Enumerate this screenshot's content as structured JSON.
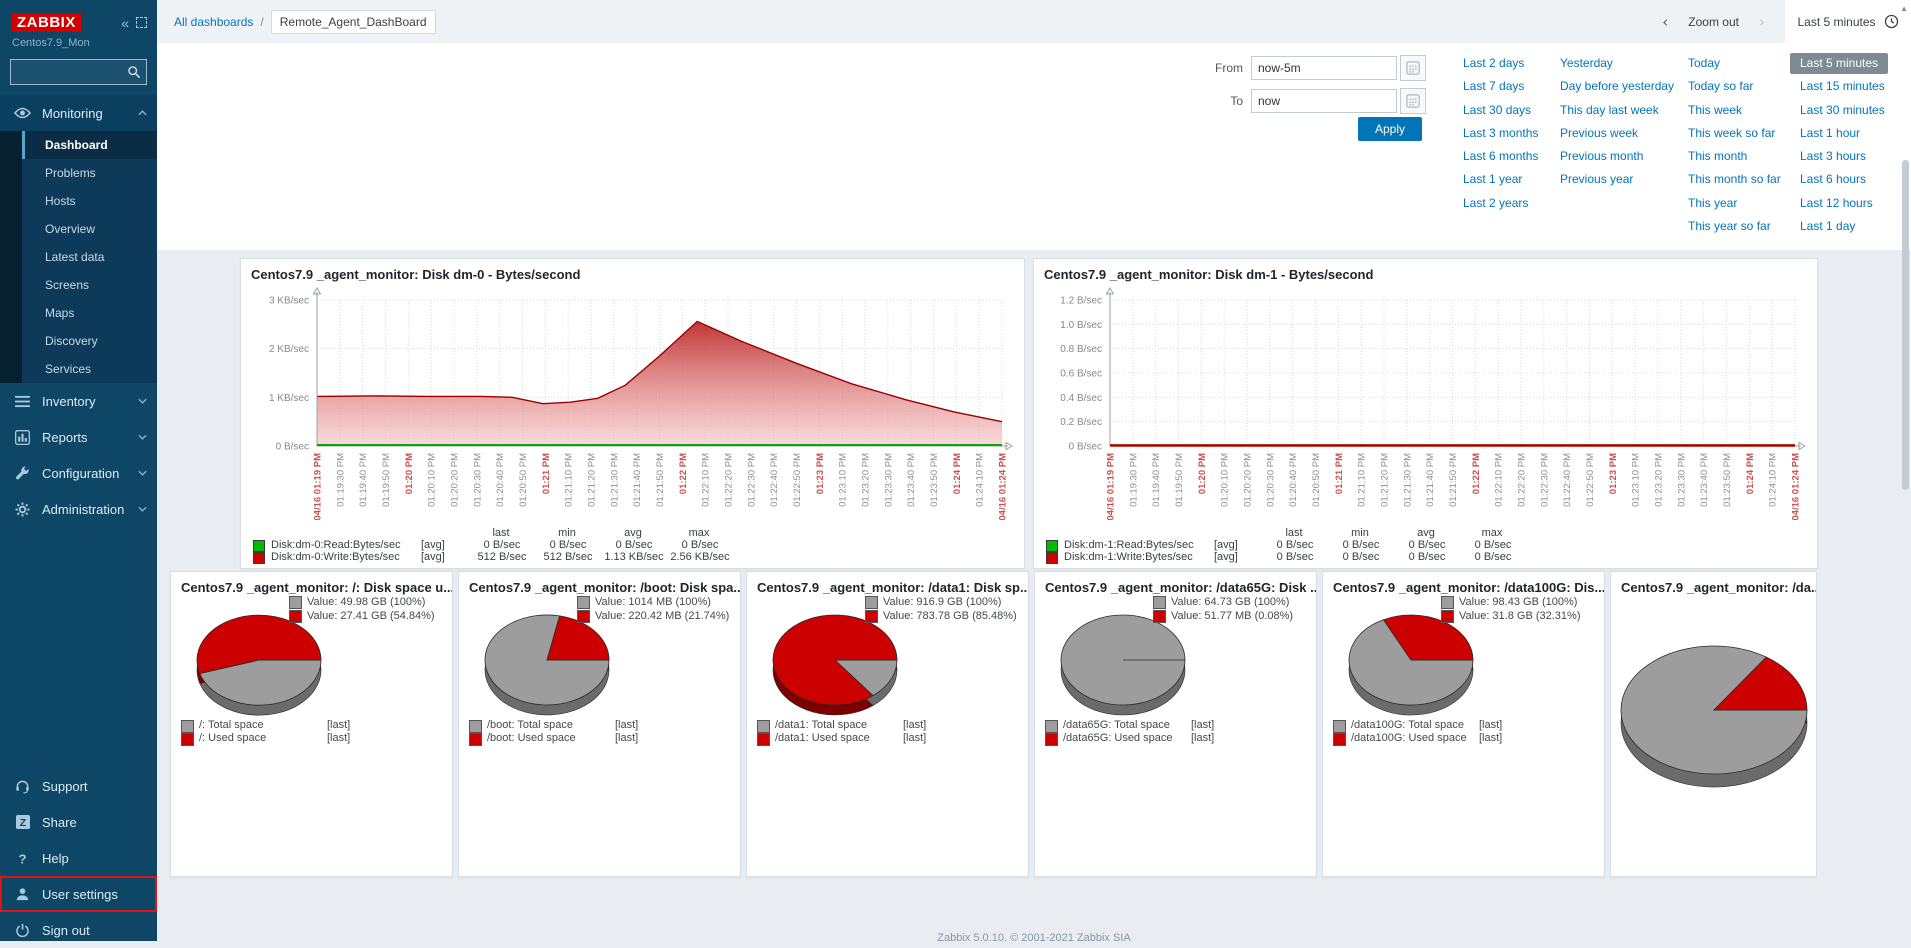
{
  "colors": {
    "accent_blue": "#0275b8",
    "zabbix_red": "#d40000",
    "pie_gray": "#9d9d9d",
    "pie_red": "#cc0000",
    "line_green": "#00bb00",
    "line_red": "#cc0000",
    "selected_range_bg": "#7d8b94"
  },
  "sidebar": {
    "logo": "ZABBIX",
    "hostname": "Centos7.9_Mon",
    "search_placeholder": "",
    "sections": [
      {
        "label": "Monitoring",
        "icon": "eye-icon",
        "expanded": true,
        "items": [
          {
            "label": "Dashboard",
            "active": true
          },
          {
            "label": "Problems"
          },
          {
            "label": "Hosts"
          },
          {
            "label": "Overview"
          },
          {
            "label": "Latest data"
          },
          {
            "label": "Screens"
          },
          {
            "label": "Maps"
          },
          {
            "label": "Discovery"
          },
          {
            "label": "Services"
          }
        ]
      },
      {
        "label": "Inventory",
        "icon": "list-icon"
      },
      {
        "label": "Reports",
        "icon": "chart-icon"
      },
      {
        "label": "Configuration",
        "icon": "wrench-icon"
      },
      {
        "label": "Administration",
        "icon": "gear-icon"
      }
    ],
    "footer_items": [
      {
        "label": "Support",
        "icon": "headset-icon"
      },
      {
        "label": "Share",
        "icon": "share-icon"
      },
      {
        "label": "Help",
        "icon": "help-icon"
      },
      {
        "label": "User settings",
        "icon": "user-icon",
        "highlighted": true
      },
      {
        "label": "Sign out",
        "icon": "power-icon"
      }
    ]
  },
  "topbar": {
    "breadcrumb_root": "All dashboards",
    "breadcrumb_sep": "/",
    "breadcrumb_current": "Remote_Agent_DashBoard",
    "zoom_out": "Zoom out",
    "range_label": "Last 5 minutes"
  },
  "time_filter": {
    "from_label": "From",
    "from_value": "now-5m",
    "to_label": "To",
    "to_value": "now",
    "apply_label": "Apply",
    "selected": "Last 5 minutes",
    "columns": [
      [
        "Last 2 days",
        "Last 7 days",
        "Last 30 days",
        "Last 3 months",
        "Last 6 months",
        "Last 1 year",
        "Last 2 years"
      ],
      [
        "Yesterday",
        "Day before yesterday",
        "This day last week",
        "Previous week",
        "Previous month",
        "Previous year"
      ],
      [
        "Today",
        "Today so far",
        "This week",
        "This week so far",
        "This month",
        "This month so far",
        "This year",
        "This year so far"
      ],
      [
        "Last 5 minutes",
        "Last 15 minutes",
        "Last 30 minutes",
        "Last 1 hour",
        "Last 3 hours",
        "Last 6 hours",
        "Last 12 hours",
        "Last 1 day"
      ]
    ]
  },
  "footer_text": "Zabbix 5.0.10. © 2001-2021 Zabbix SIA",
  "chart_data": [
    {
      "type": "line",
      "title": "Centos7.9 _agent_monitor: Disk dm-0 - Bytes/second",
      "ymax": 3,
      "y_ticks": [
        "3 KB/sec",
        "2 KB/sec",
        "1 KB/sec",
        "0 B/sec"
      ],
      "x_ticks": [
        "04/16 01:19 PM",
        "01:19:30 PM",
        "01:19:40 PM",
        "01:19:50 PM",
        "01:20 PM",
        "01:20:10 PM",
        "01:20:20 PM",
        "01:20:30 PM",
        "01:20:40 PM",
        "01:20:50 PM",
        "01:21 PM",
        "01:21:10 PM",
        "01:21:20 PM",
        "01:21:30 PM",
        "01:21:40 PM",
        "01:21:50 PM",
        "01:22 PM",
        "01:22:10 PM",
        "01:22:20 PM",
        "01:22:30 PM",
        "01:22:40 PM",
        "01:22:50 PM",
        "01:23 PM",
        "01:23:10 PM",
        "01:23:20 PM",
        "01:23:30 PM",
        "01:23:40 PM",
        "01:23:50 PM",
        "01:24 PM",
        "01:24:10 PM",
        "04/16 01:24 PM"
      ],
      "x_major": [
        0,
        4,
        10,
        16,
        22,
        28,
        30
      ],
      "legend_headers": [
        "last",
        "min",
        "avg",
        "max"
      ],
      "series": [
        {
          "name": "Disk:dm-0:Read:Bytes/sec",
          "trigger": "[avg]",
          "color": "#00bb00",
          "fill": false,
          "stats": [
            "0 B/sec",
            "0 B/sec",
            "0 B/sec",
            "0 B/sec"
          ],
          "points": [
            [
              0,
              0
            ],
            [
              1,
              0
            ]
          ]
        },
        {
          "name": "Disk:dm-0:Write:Bytes/sec",
          "trigger": "[avg]",
          "color": "#cc0000",
          "fill": true,
          "stats": [
            "512 B/sec",
            "512 B/sec",
            "1.13 KB/sec",
            "2.56 KB/sec"
          ],
          "points": [
            [
              0,
              1.02
            ],
            [
              0.08,
              1.03
            ],
            [
              0.16,
              1.02
            ],
            [
              0.24,
              1.02
            ],
            [
              0.285,
              1.0
            ],
            [
              0.33,
              0.87
            ],
            [
              0.37,
              0.9
            ],
            [
              0.41,
              0.98
            ],
            [
              0.45,
              1.25
            ],
            [
              0.5,
              1.85
            ],
            [
              0.555,
              2.56
            ],
            [
              0.62,
              2.15
            ],
            [
              0.7,
              1.7
            ],
            [
              0.78,
              1.28
            ],
            [
              0.86,
              0.95
            ],
            [
              0.93,
              0.7
            ],
            [
              1,
              0.5
            ]
          ]
        }
      ]
    },
    {
      "type": "line",
      "title": "Centos7.9 _agent_monitor: Disk dm-1 - Bytes/second",
      "ymax": 1.2,
      "y_ticks": [
        "1.2 B/sec",
        "1.0 B/sec",
        "0.8 B/sec",
        "0.6 B/sec",
        "0.4 B/sec",
        "0.2 B/sec",
        "0 B/sec"
      ],
      "x_ticks": [
        "04/16 01:19 PM",
        "01:19:30 PM",
        "01:19:40 PM",
        "01:19:50 PM",
        "01:20 PM",
        "01:20:10 PM",
        "01:20:20 PM",
        "01:20:30 PM",
        "01:20:40 PM",
        "01:20:50 PM",
        "01:21 PM",
        "01:21:10 PM",
        "01:21:20 PM",
        "01:21:30 PM",
        "01:21:40 PM",
        "01:21:50 PM",
        "01:22 PM",
        "01:22:10 PM",
        "01:22:20 PM",
        "01:22:30 PM",
        "01:22:40 PM",
        "01:22:50 PM",
        "01:23 PM",
        "01:23:10 PM",
        "01:23:20 PM",
        "01:23:30 PM",
        "01:23:40 PM",
        "01:23:50 PM",
        "01:24 PM",
        "01:24:10 PM",
        "04/16 01:24 PM"
      ],
      "x_major": [
        0,
        4,
        10,
        16,
        22,
        28,
        30
      ],
      "legend_headers": [
        "last",
        "min",
        "avg",
        "max"
      ],
      "series": [
        {
          "name": "Disk:dm-1:Read:Bytes/sec",
          "trigger": "[avg]",
          "color": "#00bb00",
          "fill": false,
          "stats": [
            "0 B/sec",
            "0 B/sec",
            "0 B/sec",
            "0 B/sec"
          ],
          "points": [
            [
              0,
              0
            ],
            [
              1,
              0
            ]
          ]
        },
        {
          "name": "Disk:dm-1:Write:Bytes/sec",
          "trigger": "[avg]",
          "color": "#cc0000",
          "fill": false,
          "stats": [
            "0 B/sec",
            "0 B/sec",
            "0 B/sec",
            "0 B/sec"
          ],
          "points": [
            [
              0,
              0
            ],
            [
              1,
              0
            ]
          ]
        }
      ]
    },
    {
      "type": "pie",
      "title": "Centos7.9 _agent_monitor: /: Disk space u...",
      "used_pct": 54.84,
      "values": [
        {
          "color": "#9d9d9d",
          "label": "Value: 49.98 GB (100%)"
        },
        {
          "color": "#cc0000",
          "label": "Value: 27.41 GB (54.84%)"
        }
      ],
      "legend": [
        {
          "color": "#9d9d9d",
          "name": "/: Total space",
          "func": "[last]"
        },
        {
          "color": "#cc0000",
          "name": "/: Used space",
          "func": "[last]"
        }
      ]
    },
    {
      "type": "pie",
      "title": "Centos7.9 _agent_monitor: /boot: Disk spa...",
      "used_pct": 21.74,
      "values": [
        {
          "color": "#9d9d9d",
          "label": "Value: 1014 MB (100%)"
        },
        {
          "color": "#cc0000",
          "label": "Value: 220.42 MB (21.74%)"
        }
      ],
      "legend": [
        {
          "color": "#9d9d9d",
          "name": "/boot: Total space",
          "func": "[last]"
        },
        {
          "color": "#cc0000",
          "name": "/boot: Used space",
          "func": "[last]"
        }
      ]
    },
    {
      "type": "pie",
      "title": "Centos7.9 _agent_monitor: /data1: Disk sp...",
      "used_pct": 85.48,
      "values": [
        {
          "color": "#9d9d9d",
          "label": "Value: 916.9 GB (100%)"
        },
        {
          "color": "#cc0000",
          "label": "Value: 783.78 GB (85.48%)"
        }
      ],
      "legend": [
        {
          "color": "#9d9d9d",
          "name": "/data1: Total space",
          "func": "[last]"
        },
        {
          "color": "#cc0000",
          "name": "/data1: Used space",
          "func": "[last]"
        }
      ]
    },
    {
      "type": "pie",
      "title": "Centos7.9 _agent_monitor: /data65G: Disk ...",
      "used_pct": 0.08,
      "values": [
        {
          "color": "#9d9d9d",
          "label": "Value: 64.73 GB (100%)"
        },
        {
          "color": "#cc0000",
          "label": "Value: 51.77 MB (0.08%)"
        }
      ],
      "legend": [
        {
          "color": "#9d9d9d",
          "name": "/data65G: Total space",
          "func": "[last]"
        },
        {
          "color": "#cc0000",
          "name": "/data65G: Used space",
          "func": "[last]"
        }
      ]
    },
    {
      "type": "pie",
      "title": "Centos7.9 _agent_monitor: /data100G: Dis...",
      "used_pct": 32.31,
      "values": [
        {
          "color": "#9d9d9d",
          "label": "Value: 98.43 GB (100%)"
        },
        {
          "color": "#cc0000",
          "label": "Value: 31.8 GB (32.31%)"
        }
      ],
      "legend": [
        {
          "color": "#9d9d9d",
          "name": "/data100G: Total space",
          "func": "[last]"
        },
        {
          "color": "#cc0000",
          "name": "/data100G: Used space",
          "func": "[last]"
        }
      ]
    },
    {
      "type": "pie",
      "title": "Centos7.9 _agent_monitor: /da...",
      "used_pct": 15.5,
      "big": true,
      "values": [],
      "legend": []
    }
  ]
}
